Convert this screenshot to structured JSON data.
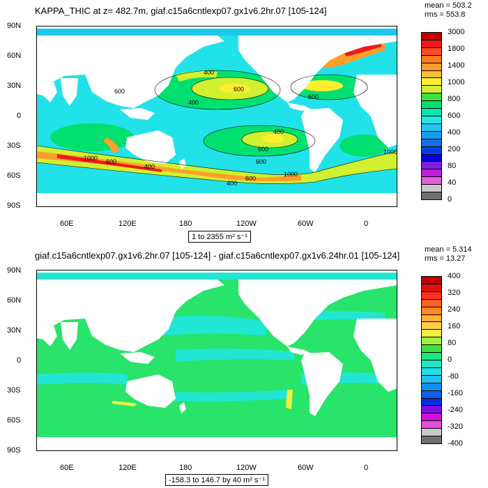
{
  "panel1": {
    "title": "KAPPA_THIC at z= 482.7m, giaf.c15a6cntlexp07.gx1v6.2hr.07 [105-124]",
    "stats": {
      "mean": "mean = 503.2",
      "rms": "rms = 553.8"
    },
    "range_text": "1 to 2355 m² s⁻¹",
    "contour_labels": [
      "400",
      "600",
      "400",
      "600",
      "400",
      "1000",
      "600",
      "400",
      "600",
      "600",
      "1000",
      "400",
      "600",
      "1000",
      "600"
    ],
    "colorbar": {
      "labels": [
        "3000",
        "1800",
        "1400",
        "1000",
        "800",
        "600",
        "400",
        "200",
        "80",
        "40",
        "0"
      ],
      "colors": [
        "#c00000",
        "#ee1a1a",
        "#ff4a2a",
        "#ff7a20",
        "#ff9e2a",
        "#ffc030",
        "#ffee30",
        "#d0f030",
        "#40e040",
        "#00e070",
        "#00e8b0",
        "#20e8e8",
        "#20c8f0",
        "#10a0f0",
        "#1070e8",
        "#0040e0",
        "#0000e0",
        "#8020e0",
        "#c020d8",
        "#e060d8",
        "#c8c8c8",
        "#707070"
      ]
    }
  },
  "panel2": {
    "title": "giaf.c15a6cntlexp07.gx1v6.2hr.07 [105-124] - giaf.c15a6cntlexp07.gx1v6.24hr.01 [105-124]",
    "stats": {
      "mean": "mean = 5.314",
      "rms": "rms = 13.27"
    },
    "range_text": "-158.3 to 146.7 by 40 m² s⁻¹",
    "colorbar": {
      "labels": [
        "400",
        "320",
        "240",
        "160",
        "80",
        "0",
        "-80",
        "-160",
        "-240",
        "-320",
        "-400"
      ],
      "colors": [
        "#c00000",
        "#e01010",
        "#ff3020",
        "#ff6020",
        "#ff8a20",
        "#ffb030",
        "#ffd040",
        "#f0f040",
        "#a0f040",
        "#40e040",
        "#20e880",
        "#20e8c0",
        "#20e0e8",
        "#20c0f0",
        "#1090f0",
        "#1060e8",
        "#0030e0",
        "#8010e0",
        "#d010d8",
        "#e050d8",
        "#c8c8c8",
        "#707070"
      ]
    }
  },
  "axes": {
    "lat_labels": [
      "90N",
      "60N",
      "30N",
      "0",
      "30S",
      "60S",
      "90S"
    ],
    "lon_labels": [
      "60E",
      "120E",
      "180",
      "120W",
      "60W",
      "0"
    ]
  },
  "colors": {
    "land": "#ffffff",
    "ocean_base_p1": "#22e2e9",
    "ocean_light_p1": "#20c8f0",
    "green_p1": "#00e070",
    "lime_p1": "#d0f030",
    "yellow_p1": "#ffee30",
    "orange_p1": "#ff9e2a",
    "red_p1": "#ee1a1a",
    "ocean_base_p2": "#28e46a",
    "cyan_p2": "#22e6d4",
    "yellow_p2": "#f0f040"
  }
}
